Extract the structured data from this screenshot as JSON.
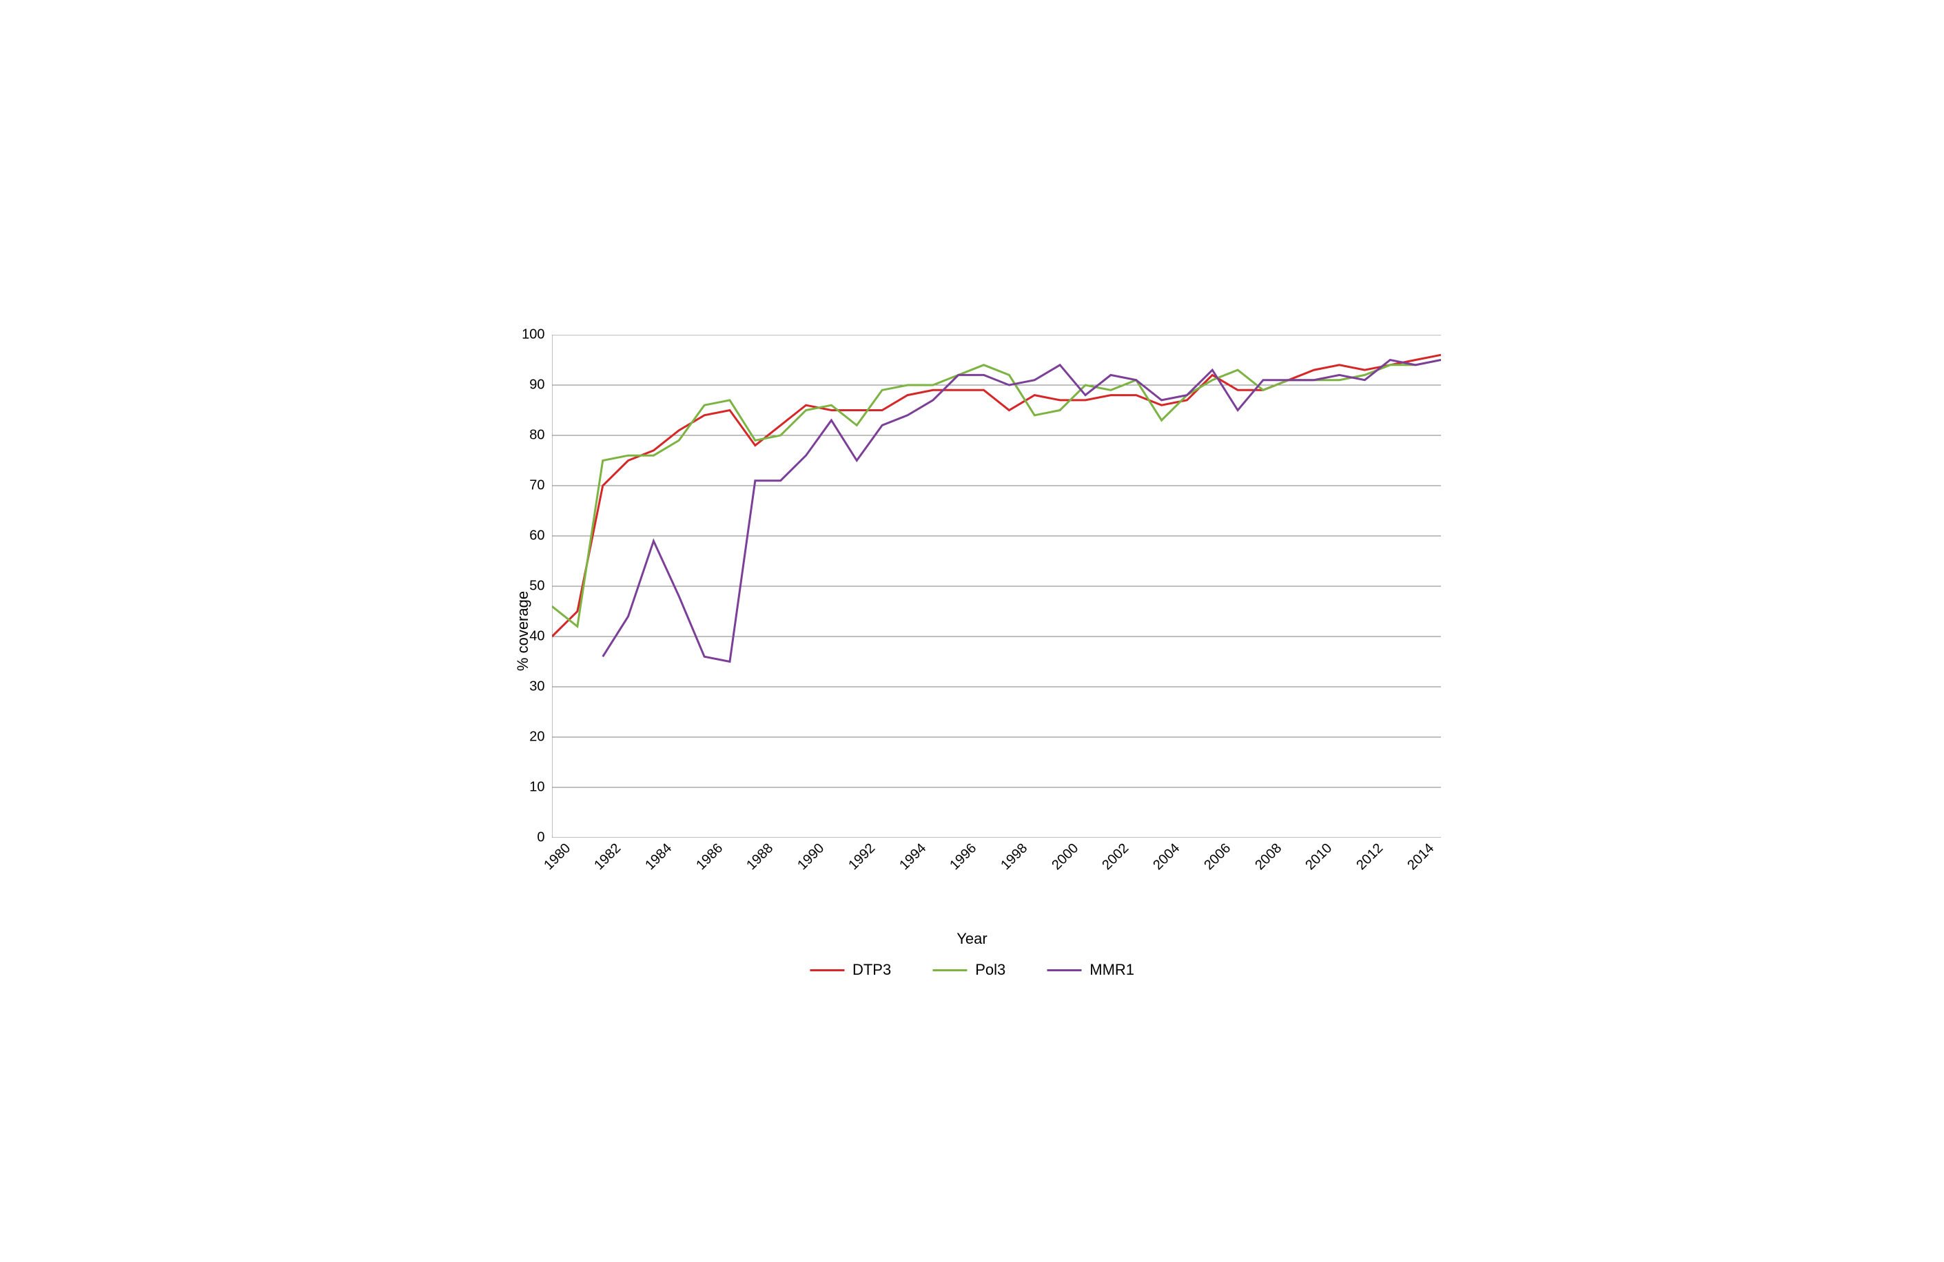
{
  "chart": {
    "type": "line",
    "ylabel": "% coverage",
    "xlabel": "Year",
    "ylim": [
      0,
      100
    ],
    "xlim": [
      1980,
      2015
    ],
    "ytick_step": 10,
    "xtick_step": 2,
    "x_ticks": [
      1980,
      1982,
      1984,
      1986,
      1988,
      1990,
      1992,
      1994,
      1996,
      1998,
      2000,
      2002,
      2004,
      2006,
      2008,
      2010,
      2012,
      2014
    ],
    "y_ticks": [
      0,
      10,
      20,
      30,
      40,
      50,
      60,
      70,
      80,
      90,
      100
    ],
    "background_color": "#ffffff",
    "grid_color": "#808080",
    "axis_color": "#000000",
    "tick_color": "#808080",
    "label_fontsize": 22,
    "tick_fontsize": 20,
    "legend_fontsize": 22,
    "line_width": 3,
    "series": [
      {
        "name": "DTP3",
        "color": "#d62728",
        "years": [
          1980,
          1981,
          1982,
          1983,
          1984,
          1985,
          1986,
          1987,
          1988,
          1989,
          1990,
          1991,
          1992,
          1993,
          1994,
          1995,
          1996,
          1997,
          1998,
          1999,
          2000,
          2001,
          2002,
          2003,
          2004,
          2005,
          2006,
          2007,
          2008,
          2009,
          2010,
          2011,
          2012,
          2013,
          2014,
          2015
        ],
        "values": [
          40,
          45,
          70,
          75,
          77,
          81,
          84,
          85,
          78,
          82,
          86,
          85,
          85,
          85,
          88,
          89,
          89,
          89,
          85,
          88,
          87,
          87,
          88,
          88,
          86,
          87,
          92,
          89,
          89,
          91,
          93,
          94,
          93,
          94,
          95,
          96
        ]
      },
      {
        "name": "Pol3",
        "color": "#7cb342",
        "years": [
          1980,
          1981,
          1982,
          1983,
          1984,
          1985,
          1986,
          1987,
          1988,
          1989,
          1990,
          1991,
          1992,
          1993,
          1994,
          1995,
          1996,
          1997,
          1998,
          1999,
          2000,
          2001,
          2002,
          2003,
          2004,
          2005,
          2006,
          2007,
          2008,
          2009,
          2010,
          2011,
          2012,
          2013,
          2014,
          2015
        ],
        "values": [
          46,
          42,
          75,
          76,
          76,
          79,
          86,
          87,
          79,
          80,
          85,
          86,
          82,
          89,
          90,
          90,
          92,
          94,
          92,
          84,
          85,
          90,
          89,
          91,
          83,
          88,
          91,
          93,
          89,
          91,
          91,
          91,
          92,
          94,
          94,
          95
        ]
      },
      {
        "name": "MMR1",
        "color": "#7b3f98",
        "years": [
          1982,
          1983,
          1984,
          1985,
          1986,
          1987,
          1988,
          1989,
          1990,
          1991,
          1992,
          1993,
          1994,
          1995,
          1996,
          1997,
          1998,
          1999,
          2000,
          2001,
          2002,
          2003,
          2004,
          2005,
          2006,
          2007,
          2008,
          2009,
          2010,
          2011,
          2012,
          2013,
          2014,
          2015
        ],
        "values": [
          36,
          44,
          59,
          48,
          36,
          35,
          71,
          71,
          76,
          83,
          75,
          82,
          84,
          87,
          92,
          92,
          90,
          91,
          94,
          88,
          92,
          91,
          87,
          88,
          93,
          85,
          91,
          91,
          91,
          92,
          91,
          95,
          94,
          95
        ]
      }
    ]
  }
}
